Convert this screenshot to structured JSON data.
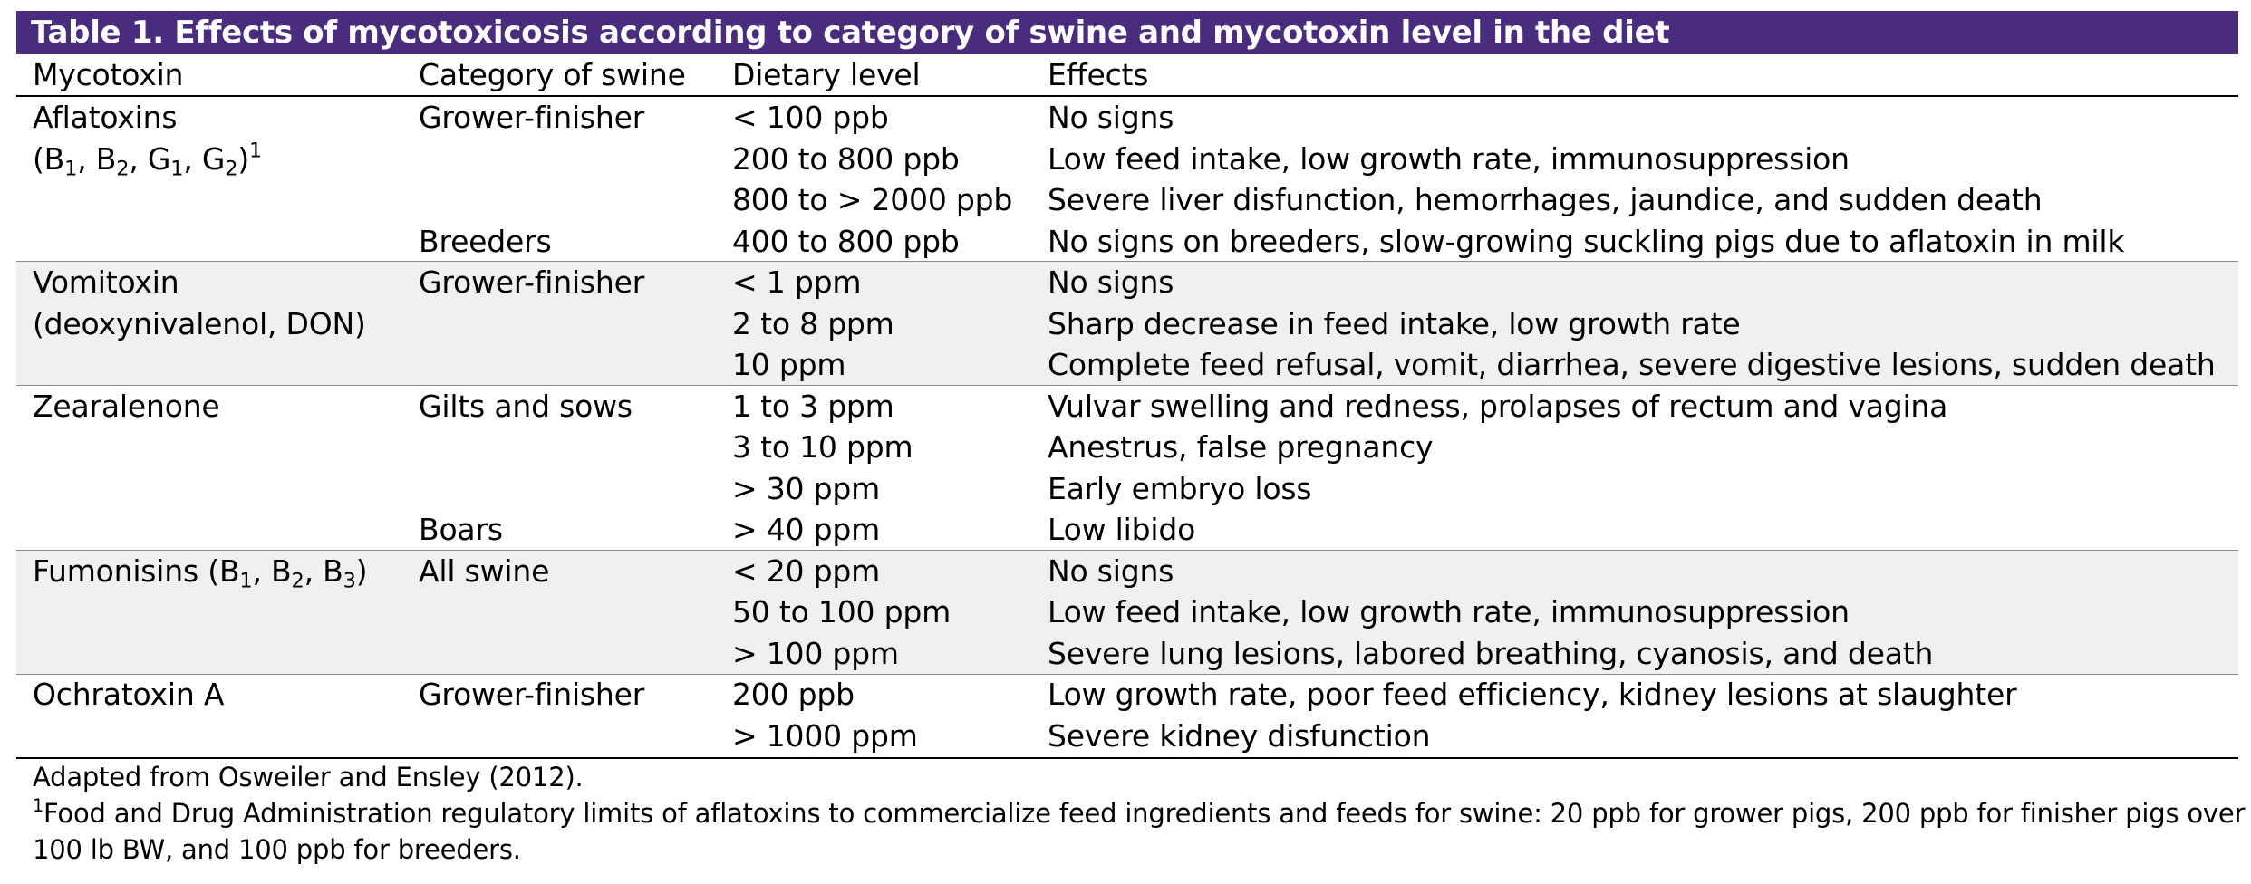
{
  "table": {
    "title": "Table 1. Effects of mycotoxicosis according to category of swine and mycotoxin level in the diet",
    "headers": [
      "Mycotoxin",
      "Category of swine",
      "Dietary level",
      "Effects"
    ],
    "groups": [
      {
        "mycotoxin_line1": "Aflatoxins",
        "mycotoxin_line2": {
          "open": "(B",
          "s1": "1",
          "sep1": ", B",
          "s2": "2",
          "sep2": ", G",
          "s3": "1",
          "sep3": ", G",
          "s4": "2",
          "close": ")",
          "footnote_mark": "1"
        },
        "rows": [
          {
            "category": "Grower-finisher",
            "level": "< 100 ppb",
            "effect": "No signs"
          },
          {
            "category": "",
            "level": "200 to 800 ppb",
            "effect": "Low feed intake, low growth rate, immunosuppression"
          },
          {
            "category": "",
            "level": "800 to > 2000 ppb",
            "effect": "Severe liver disfunction, hemorrhages, jaundice, and sudden death"
          },
          {
            "category": "Breeders",
            "level": "400 to 800 ppb",
            "effect": "No signs on breeders, slow-growing suckling pigs due to aflatoxin in milk"
          }
        ]
      },
      {
        "mycotoxin_line1": "Vomitoxin",
        "mycotoxin_line2_text": "(deoxynivalenol, DON)",
        "rows": [
          {
            "category": "Grower-finisher",
            "level": "< 1 ppm",
            "effect": "No signs"
          },
          {
            "category": "",
            "level": "2 to 8 ppm",
            "effect": "Sharp decrease in feed intake, low growth rate"
          },
          {
            "category": "",
            "level": "10 ppm",
            "effect": "Complete feed refusal, vomit, diarrhea, severe digestive lesions, sudden death"
          }
        ]
      },
      {
        "mycotoxin_line1": "Zearalenone",
        "rows": [
          {
            "category": "Gilts and sows",
            "level": "1 to 3 ppm",
            "effect": "Vulvar swelling and redness, prolapses of rectum and vagina"
          },
          {
            "category": "",
            "level": "3 to 10 ppm",
            "effect": "Anestrus, false pregnancy"
          },
          {
            "category": "",
            "level": "> 30 ppm",
            "effect": "Early embryo loss"
          },
          {
            "category": "Boars",
            "level": "> 40 ppm",
            "effect": "Low libido"
          }
        ]
      },
      {
        "mycotoxin_line1": {
          "open": "Fumonisins (B",
          "s1": "1",
          "sep1": ", B",
          "s2": "2",
          "sep2": ", B",
          "s3": "3",
          "close": ")"
        },
        "rows": [
          {
            "category": "All swine",
            "level": "< 20 ppm",
            "effect": "No signs"
          },
          {
            "category": "",
            "level": "50 to 100 ppm",
            "effect": "Low feed intake, low growth rate, immunosuppression"
          },
          {
            "category": "",
            "level": "> 100 ppm",
            "effect": "Severe lung lesions, labored breathing, cyanosis, and death"
          }
        ]
      },
      {
        "mycotoxin_line1": "Ochratoxin A",
        "rows": [
          {
            "category": "Grower-finisher",
            "level": "200 ppb",
            "effect": "Low growth rate, poor feed efficiency, kidney lesions at slaughter"
          },
          {
            "category": "",
            "level": "> 1000 ppm",
            "effect": "Severe kidney disfunction"
          }
        ]
      }
    ],
    "footnotes": {
      "source": "Adapted from Osweiler and Ensley (2012).",
      "note_mark": "1",
      "note_line1": "Food and Drug Administration regulatory limits of aflatoxins to commercialize feed ingredients and feeds for swine: 20 ppb for grower pigs, 200 ppb for finisher pigs over",
      "note_line2": "100 lb BW, and 100 ppb for breeders."
    },
    "colors": {
      "title_background": "#4a2c7f",
      "title_text": "#ffffff",
      "band_shading": "#f0f0f0",
      "rules": "#000000"
    }
  }
}
